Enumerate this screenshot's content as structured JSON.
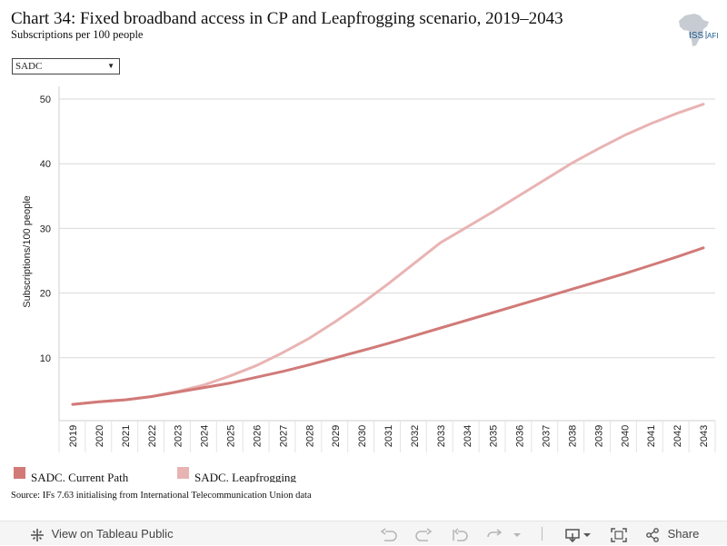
{
  "header": {
    "title": "Chart 34: Fixed broadband access in CP and Leapfrogging scenario, 2019–2043",
    "subtitle": "Subscriptions per 100 people",
    "logo_text_1": "ISS",
    "logo_text_2": "AFI"
  },
  "filter": {
    "selected": "SADC"
  },
  "source": "Source: IFs 7.63 initialising from International Telecommunication Union data",
  "toolbar": {
    "view_label": "View on Tableau Public",
    "share_label": "Share",
    "icons": [
      "tableau-icon",
      "undo-icon",
      "redo-icon",
      "revert-icon",
      "refresh-icon",
      "download-icon",
      "fullscreen-icon",
      "share-icon"
    ]
  },
  "chart_data": {
    "type": "line",
    "ylabel": "Subscriptions/100 people",
    "xlabel": "",
    "ylim": [
      0,
      50
    ],
    "yticks": [
      10,
      20,
      30,
      40,
      50
    ],
    "grid": true,
    "legend_position": "bottom-left",
    "x": [
      "2019",
      "2020",
      "2021",
      "2022",
      "2023",
      "2024",
      "2025",
      "2026",
      "2027",
      "2028",
      "2029",
      "2030",
      "2031",
      "2032",
      "2033",
      "2034",
      "2035",
      "2036",
      "2037",
      "2038",
      "2039",
      "2040",
      "2041",
      "2042",
      "2043"
    ],
    "series": [
      {
        "name": "SADC. Current Path",
        "color": "#d17a78",
        "values": [
          2.8,
          3.2,
          3.5,
          4.0,
          4.7,
          5.4,
          6.1,
          7.0,
          7.9,
          8.9,
          10.0,
          11.1,
          12.2,
          13.4,
          14.6,
          15.8,
          17.0,
          18.2,
          19.4,
          20.6,
          21.8,
          23.0,
          24.3,
          25.6,
          27.0
        ]
      },
      {
        "name": "SADC. Leapfrogging",
        "color": "#e8b4b3",
        "values": [
          2.8,
          3.2,
          3.5,
          4.0,
          4.8,
          5.8,
          7.2,
          8.8,
          10.8,
          13.0,
          15.6,
          18.4,
          21.4,
          24.6,
          27.8,
          30.2,
          32.6,
          35.1,
          37.6,
          40.1,
          42.3,
          44.4,
          46.2,
          47.8,
          49.2
        ]
      }
    ]
  }
}
